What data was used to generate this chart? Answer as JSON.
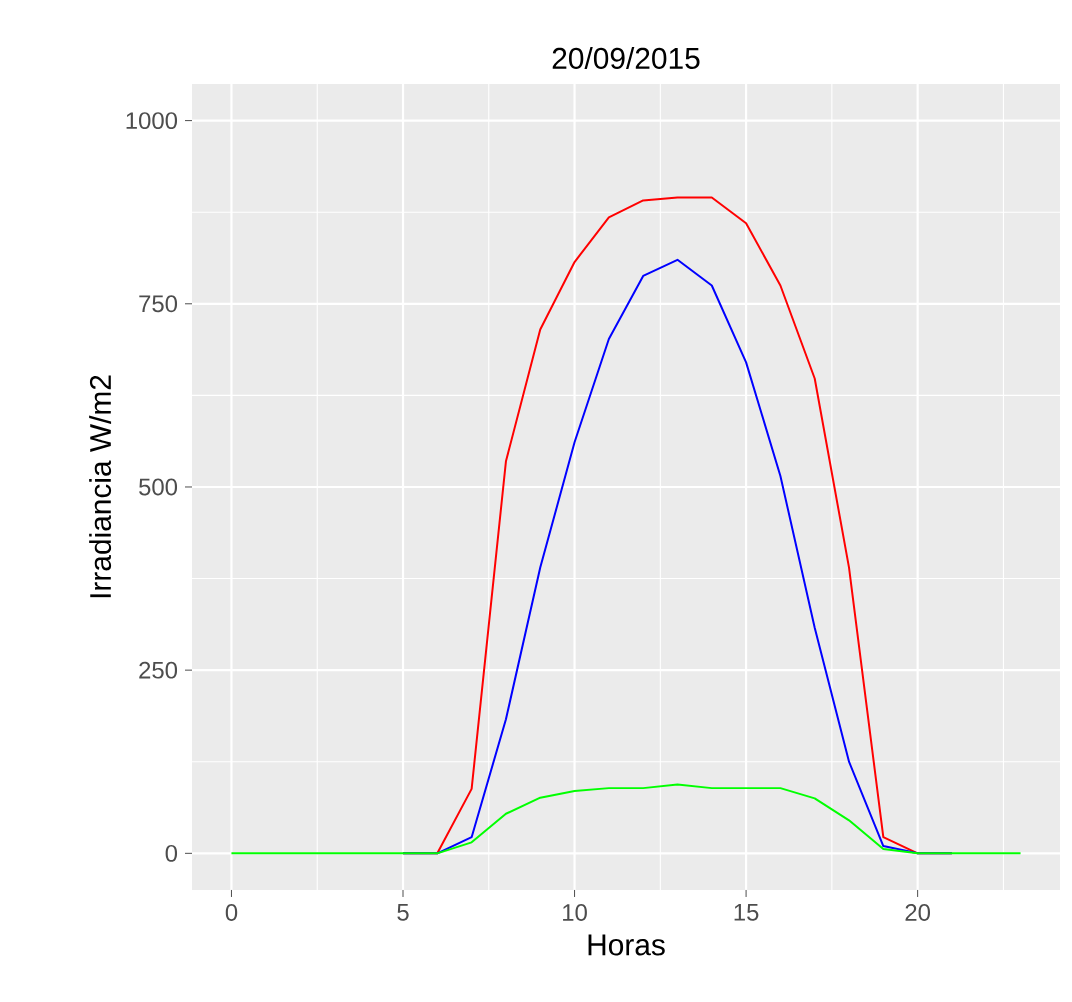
{
  "chart_data": {
    "type": "line",
    "title": "20/09/2015",
    "xlabel": "Horas",
    "ylabel": "Irradiancia W/m2",
    "x": [
      0,
      1,
      2,
      3,
      4,
      5,
      6,
      7,
      8,
      9,
      10,
      11,
      12,
      13,
      14,
      15,
      16,
      17,
      18,
      19,
      20,
      21,
      22,
      23
    ],
    "series": [
      {
        "color": "#ff0000",
        "values": [
          null,
          null,
          null,
          null,
          null,
          0,
          0,
          88,
          535,
          715,
          807,
          868,
          891,
          895,
          895,
          860,
          775,
          648,
          390,
          22,
          0,
          0,
          null,
          null
        ]
      },
      {
        "color": "#0000ff",
        "values": [
          null,
          null,
          null,
          null,
          null,
          0,
          0,
          22,
          183,
          390,
          561,
          702,
          788,
          810,
          775,
          670,
          515,
          308,
          125,
          10,
          0,
          0,
          null,
          null
        ]
      },
      {
        "color": "#00ff00",
        "values": [
          0,
          0,
          0,
          0,
          0,
          0,
          0,
          15,
          54,
          76,
          85,
          89,
          89,
          94,
          89,
          89,
          89,
          75,
          45,
          6,
          0,
          0,
          0,
          0
        ]
      }
    ],
    "xlim": [
      -1.15,
      24.15
    ],
    "ylim": [
      -50,
      1050
    ],
    "xticks": [
      0,
      5,
      10,
      15,
      20
    ],
    "yticks": [
      0,
      250,
      500,
      750,
      1000
    ],
    "grid": true
  }
}
